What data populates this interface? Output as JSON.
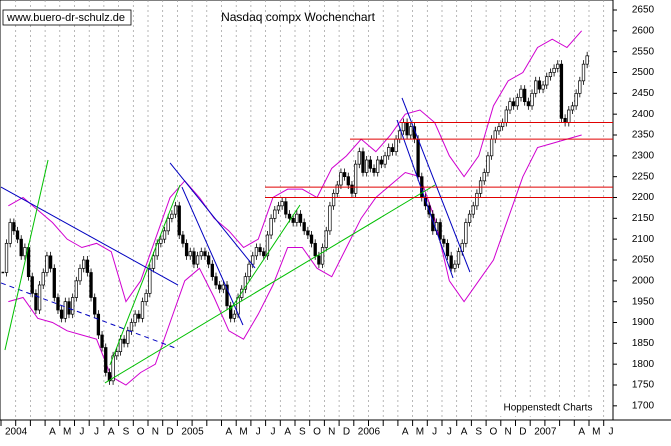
{
  "chart_data": {
    "type": "candlestick",
    "title": "Nasdaq compx Wochenchart",
    "watermark": "www.buero-dr-schulz.de",
    "source": "Hoppenstedt Charts",
    "categories": [
      "2004",
      null,
      null,
      "A",
      "M",
      "J",
      "J",
      "A",
      "S",
      "O",
      "N",
      "D",
      "2005",
      null,
      null,
      "A",
      "M",
      "J",
      "J",
      "A",
      "S",
      "O",
      "N",
      "D",
      "2006",
      null,
      null,
      "A",
      "M",
      "J",
      "J",
      "A",
      "S",
      "O",
      "N",
      "D",
      "2007",
      null,
      null,
      "A",
      "M",
      "J"
    ],
    "close": [
      2020,
      2090,
      2140,
      2120,
      2100,
      2060,
      2080,
      2010,
      1970,
      1930,
      1990,
      2020,
      2060,
      2030,
      1960,
      1930,
      1910,
      1950,
      1920,
      1960,
      2000,
      2030,
      2050,
      2020,
      1960,
      1920,
      1870,
      1840,
      1780,
      1760,
      1820,
      1830,
      1860,
      1850,
      1880,
      1900,
      1920,
      1910,
      1950,
      1970,
      2030,
      2060,
      2090,
      2100,
      2120,
      2150,
      2160,
      2180,
      2110,
      2090,
      2060,
      2070,
      2040,
      2060,
      2070,
      2060,
      2040,
      2010,
      1990,
      1980,
      1990,
      1940,
      1910,
      1920,
      1960,
      1980,
      2010,
      2040,
      2060,
      2080,
      2070,
      2060,
      2110,
      2150,
      2170,
      2180,
      2190,
      2160,
      2150,
      2140,
      2160,
      2140,
      2120,
      2110,
      2090,
      2060,
      2040,
      2080,
      2120,
      2180,
      2210,
      2230,
      2260,
      2250,
      2230,
      2210,
      2280,
      2310,
      2260,
      2290,
      2270,
      2260,
      2290,
      2280,
      2300,
      2320,
      2310,
      2340,
      2360,
      2380,
      2350,
      2370,
      2340,
      2250,
      2200,
      2180,
      2160,
      2120,
      2140,
      2100,
      2090,
      2060,
      2030,
      2040,
      2070,
      2090,
      2140,
      2160,
      2180,
      2210,
      2240,
      2260,
      2300,
      2340,
      2360,
      2370,
      2380,
      2410,
      2430,
      2420,
      2440,
      2460,
      2430,
      2420,
      2450,
      2480,
      2460,
      2470,
      2490,
      2500,
      2510,
      2520,
      2390,
      2380,
      2410,
      2420,
      2450,
      2480,
      2520,
      2540
    ],
    "bands": [
      {
        "color": "#d000d0",
        "values": [
          2180,
          2200,
          2170,
          2140,
          2100,
          2080,
          2090,
          2070,
          1950,
          2000,
          2100,
          2200,
          2240,
          2200,
          2150,
          2120,
          2080,
          2100,
          2200,
          2220,
          2220,
          2200,
          2270,
          2300,
          2340,
          2310,
          2350,
          2400,
          2410,
          2380,
          2300,
          2250,
          2300,
          2420,
          2480,
          2500,
          2560,
          2580,
          2560,
          2600
        ]
      },
      {
        "color": "#d000d0",
        "values": [
          1950,
          1960,
          1910,
          1900,
          1880,
          1870,
          1860,
          1770,
          1750,
          1780,
          1800,
          1900,
          2000,
          2030,
          1960,
          1880,
          1860,
          1920,
          1990,
          2080,
          2080,
          2030,
          2010,
          2080,
          2150,
          2200,
          2230,
          2260,
          2250,
          2150,
          2000,
          1950,
          2000,
          2050,
          2150,
          2250,
          2320,
          2330,
          2340,
          2350
        ]
      }
    ],
    "trendlines": [
      {
        "color": "#0000c0",
        "x": [
          0,
          12.04
        ],
        "values": [
          2225,
          1990
        ]
      },
      {
        "color": "#0000c0",
        "dashed": true,
        "x": [
          0,
          11.84
        ],
        "values": [
          1995,
          1839
        ]
      },
      {
        "color": "#0000c0",
        "x": [
          11.5,
          17.28
        ],
        "values": [
          2283,
          2031
        ]
      },
      {
        "color": "#0000c0",
        "x": [
          12.31,
          16.46
        ],
        "values": [
          2225,
          1894
        ]
      },
      {
        "color": "#0000c0",
        "x": [
          27.28,
          31.9
        ],
        "values": [
          2439,
          2021
        ]
      },
      {
        "color": "#0000c0",
        "x": [
          26.94,
          30.75
        ],
        "values": [
          2386,
          2007
        ]
      },
      {
        "color": "#00c000",
        "x": [
          7.41,
          12.18
        ],
        "values": [
          1798,
          2230
        ]
      },
      {
        "color": "#00c000",
        "x": [
          7.07,
          29.52
        ],
        "values": [
          1755,
          2230
        ]
      },
      {
        "color": "#00c000",
        "x": [
          15.58,
          20.34
        ],
        "values": [
          1930,
          2182
        ]
      },
      {
        "color": "#00c000",
        "x": [
          0.27,
          3.2
        ],
        "values": [
          1834,
          2290
        ]
      },
      {
        "color": "#e00000",
        "x": [
          27.14,
          41.63
        ],
        "values": [
          2380,
          2380
        ]
      },
      {
        "color": "#e00000",
        "x": [
          23.74,
          41.63
        ],
        "values": [
          2340,
          2340
        ]
      },
      {
        "color": "#e00000",
        "x": [
          17.96,
          41.63
        ],
        "values": [
          2225,
          2225
        ]
      },
      {
        "color": "#e00000",
        "x": [
          17.96,
          41.63
        ],
        "values": [
          2200,
          2200
        ]
      }
    ],
    "ylim": [
      1666,
      2674
    ],
    "yticks": [
      1700,
      1750,
      1800,
      1850,
      1900,
      1950,
      2000,
      2050,
      2100,
      2150,
      2200,
      2250,
      2300,
      2350,
      2400,
      2450,
      2500,
      2550,
      2600,
      2650
    ],
    "grid": true
  }
}
